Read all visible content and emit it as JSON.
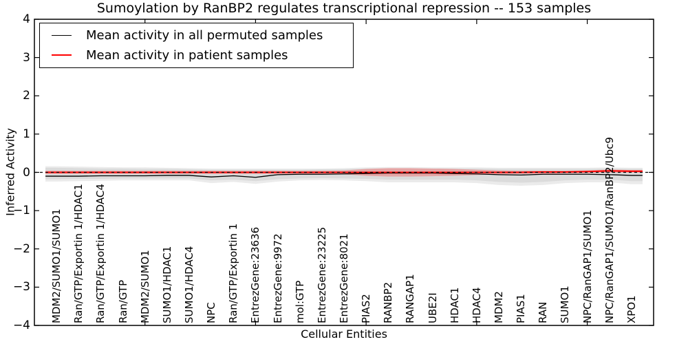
{
  "chart_data": {
    "type": "line",
    "title": "Sumoylation by RanBP2 regulates transcriptional repression -- 153 samples",
    "xlabel": "Cellular Entities",
    "ylabel": "Inferred Activity",
    "xlim": [
      0,
      28
    ],
    "ylim": [
      -4,
      4
    ],
    "grid": false,
    "legend_position": "upper-left",
    "y_ticks": [
      4,
      3,
      2,
      1,
      0,
      -1,
      -2,
      -3,
      -4
    ],
    "y_tick_labels": [
      "4",
      "3",
      "2",
      "1",
      "0",
      "−1",
      "−2",
      "−3",
      "−4"
    ],
    "x_major_ticks": [
      5,
      10,
      15,
      20,
      25
    ],
    "categories": [
      "MDM2/SUMO1/SUMO1",
      "Ran/GTP/Exportin 1/HDAC1",
      "Ran/GTP/Exportin 1/HDAC4",
      "Ran/GTP",
      "MDM2/SUMO1",
      "SUMO1/HDAC1",
      "SUMO1/HDAC4",
      "NPC",
      "Ran/GTP/Exportin 1",
      "EntrezGene:23636",
      "EntrezGene:9972",
      "mol:GTP",
      "EntrezGene:23225",
      "EntrezGene:8021",
      "PIAS2",
      "RANBP2",
      "RANGAP1",
      "UBE2I",
      "HDAC1",
      "HDAC4",
      "MDM2",
      "PIAS1",
      "RAN",
      "SUMO1",
      "NPC/RanGAP1/SUMO1",
      "NPC/RanGAP1/SUMO1/RanBP2/Ubc9",
      "XPO1"
    ],
    "series": [
      {
        "name": "Mean activity in all permuted samples",
        "color": "#000000",
        "linewidth": 1.3,
        "values": [
          -0.1,
          -0.1,
          -0.09,
          -0.09,
          -0.09,
          -0.08,
          -0.08,
          -0.12,
          -0.09,
          -0.13,
          -0.06,
          -0.05,
          -0.05,
          -0.04,
          -0.03,
          -0.02,
          -0.02,
          -0.02,
          -0.03,
          -0.04,
          -0.06,
          -0.07,
          -0.05,
          -0.05,
          -0.05,
          -0.06,
          -0.08
        ]
      },
      {
        "name": "Mean activity in patient samples",
        "color": "#ff0000",
        "linewidth": 2.0,
        "values": [
          0.0,
          0.0,
          0.0,
          0.0,
          0.0,
          0.0,
          0.0,
          0.0,
          0.0,
          0.0,
          0.0,
          0.0,
          0.0,
          0.0,
          0.0,
          0.0,
          0.0,
          0.0,
          0.0,
          0.0,
          0.0,
          0.0,
          0.01,
          0.01,
          0.02,
          0.04,
          0.03
        ]
      }
    ],
    "bands": [
      {
        "name": "permuted-outer",
        "color": "#ebebeb",
        "opacity": 1,
        "upper": [
          0.16,
          0.15,
          0.14,
          0.13,
          0.13,
          0.12,
          0.11,
          0.1,
          0.1,
          0.1,
          0.1,
          0.1,
          0.1,
          0.11,
          0.13,
          0.14,
          0.14,
          0.13,
          0.13,
          0.13,
          0.12,
          0.12,
          0.12,
          0.12,
          0.12,
          0.13,
          0.12
        ],
        "lower": [
          -0.24,
          -0.23,
          -0.22,
          -0.21,
          -0.21,
          -0.21,
          -0.21,
          -0.28,
          -0.25,
          -0.3,
          -0.24,
          -0.21,
          -0.2,
          -0.21,
          -0.23,
          -0.26,
          -0.26,
          -0.26,
          -0.26,
          -0.28,
          -0.33,
          -0.35,
          -0.33,
          -0.28,
          -0.26,
          -0.26,
          -0.31
        ]
      },
      {
        "name": "permuted-inner",
        "color": "#d9d9d9",
        "opacity": 0.9,
        "upper": [
          0.12,
          0.11,
          0.1,
          0.1,
          0.09,
          0.09,
          0.08,
          0.07,
          0.07,
          0.07,
          0.07,
          0.07,
          0.08,
          0.08,
          0.1,
          0.1,
          0.1,
          0.1,
          0.1,
          0.1,
          0.09,
          0.09,
          0.09,
          0.09,
          0.09,
          0.1,
          0.09
        ],
        "lower": [
          -0.18,
          -0.17,
          -0.17,
          -0.16,
          -0.16,
          -0.16,
          -0.16,
          -0.21,
          -0.19,
          -0.23,
          -0.18,
          -0.16,
          -0.15,
          -0.16,
          -0.17,
          -0.19,
          -0.19,
          -0.19,
          -0.19,
          -0.21,
          -0.25,
          -0.27,
          -0.25,
          -0.21,
          -0.19,
          -0.19,
          -0.23
        ]
      },
      {
        "name": "patient",
        "color": "#f07070",
        "opacity": 0.5,
        "upper": [
          0.04,
          0.04,
          0.04,
          0.04,
          0.04,
          0.04,
          0.04,
          0.04,
          0.04,
          0.04,
          0.04,
          0.04,
          0.04,
          0.05,
          0.09,
          0.11,
          0.11,
          0.1,
          0.09,
          0.07,
          0.05,
          0.04,
          0.04,
          0.04,
          0.05,
          0.07,
          0.06
        ],
        "lower": [
          -0.04,
          -0.04,
          -0.04,
          -0.04,
          -0.04,
          -0.04,
          -0.04,
          -0.04,
          -0.04,
          -0.04,
          -0.04,
          -0.04,
          -0.04,
          -0.05,
          -0.09,
          -0.11,
          -0.11,
          -0.1,
          -0.09,
          -0.07,
          -0.05,
          -0.04,
          -0.04,
          -0.03,
          -0.02,
          -0.01,
          -0.01
        ]
      }
    ],
    "zero_line": {
      "y": 0,
      "style": "dashed",
      "color": "#000000"
    },
    "axis_color": "#000000"
  }
}
